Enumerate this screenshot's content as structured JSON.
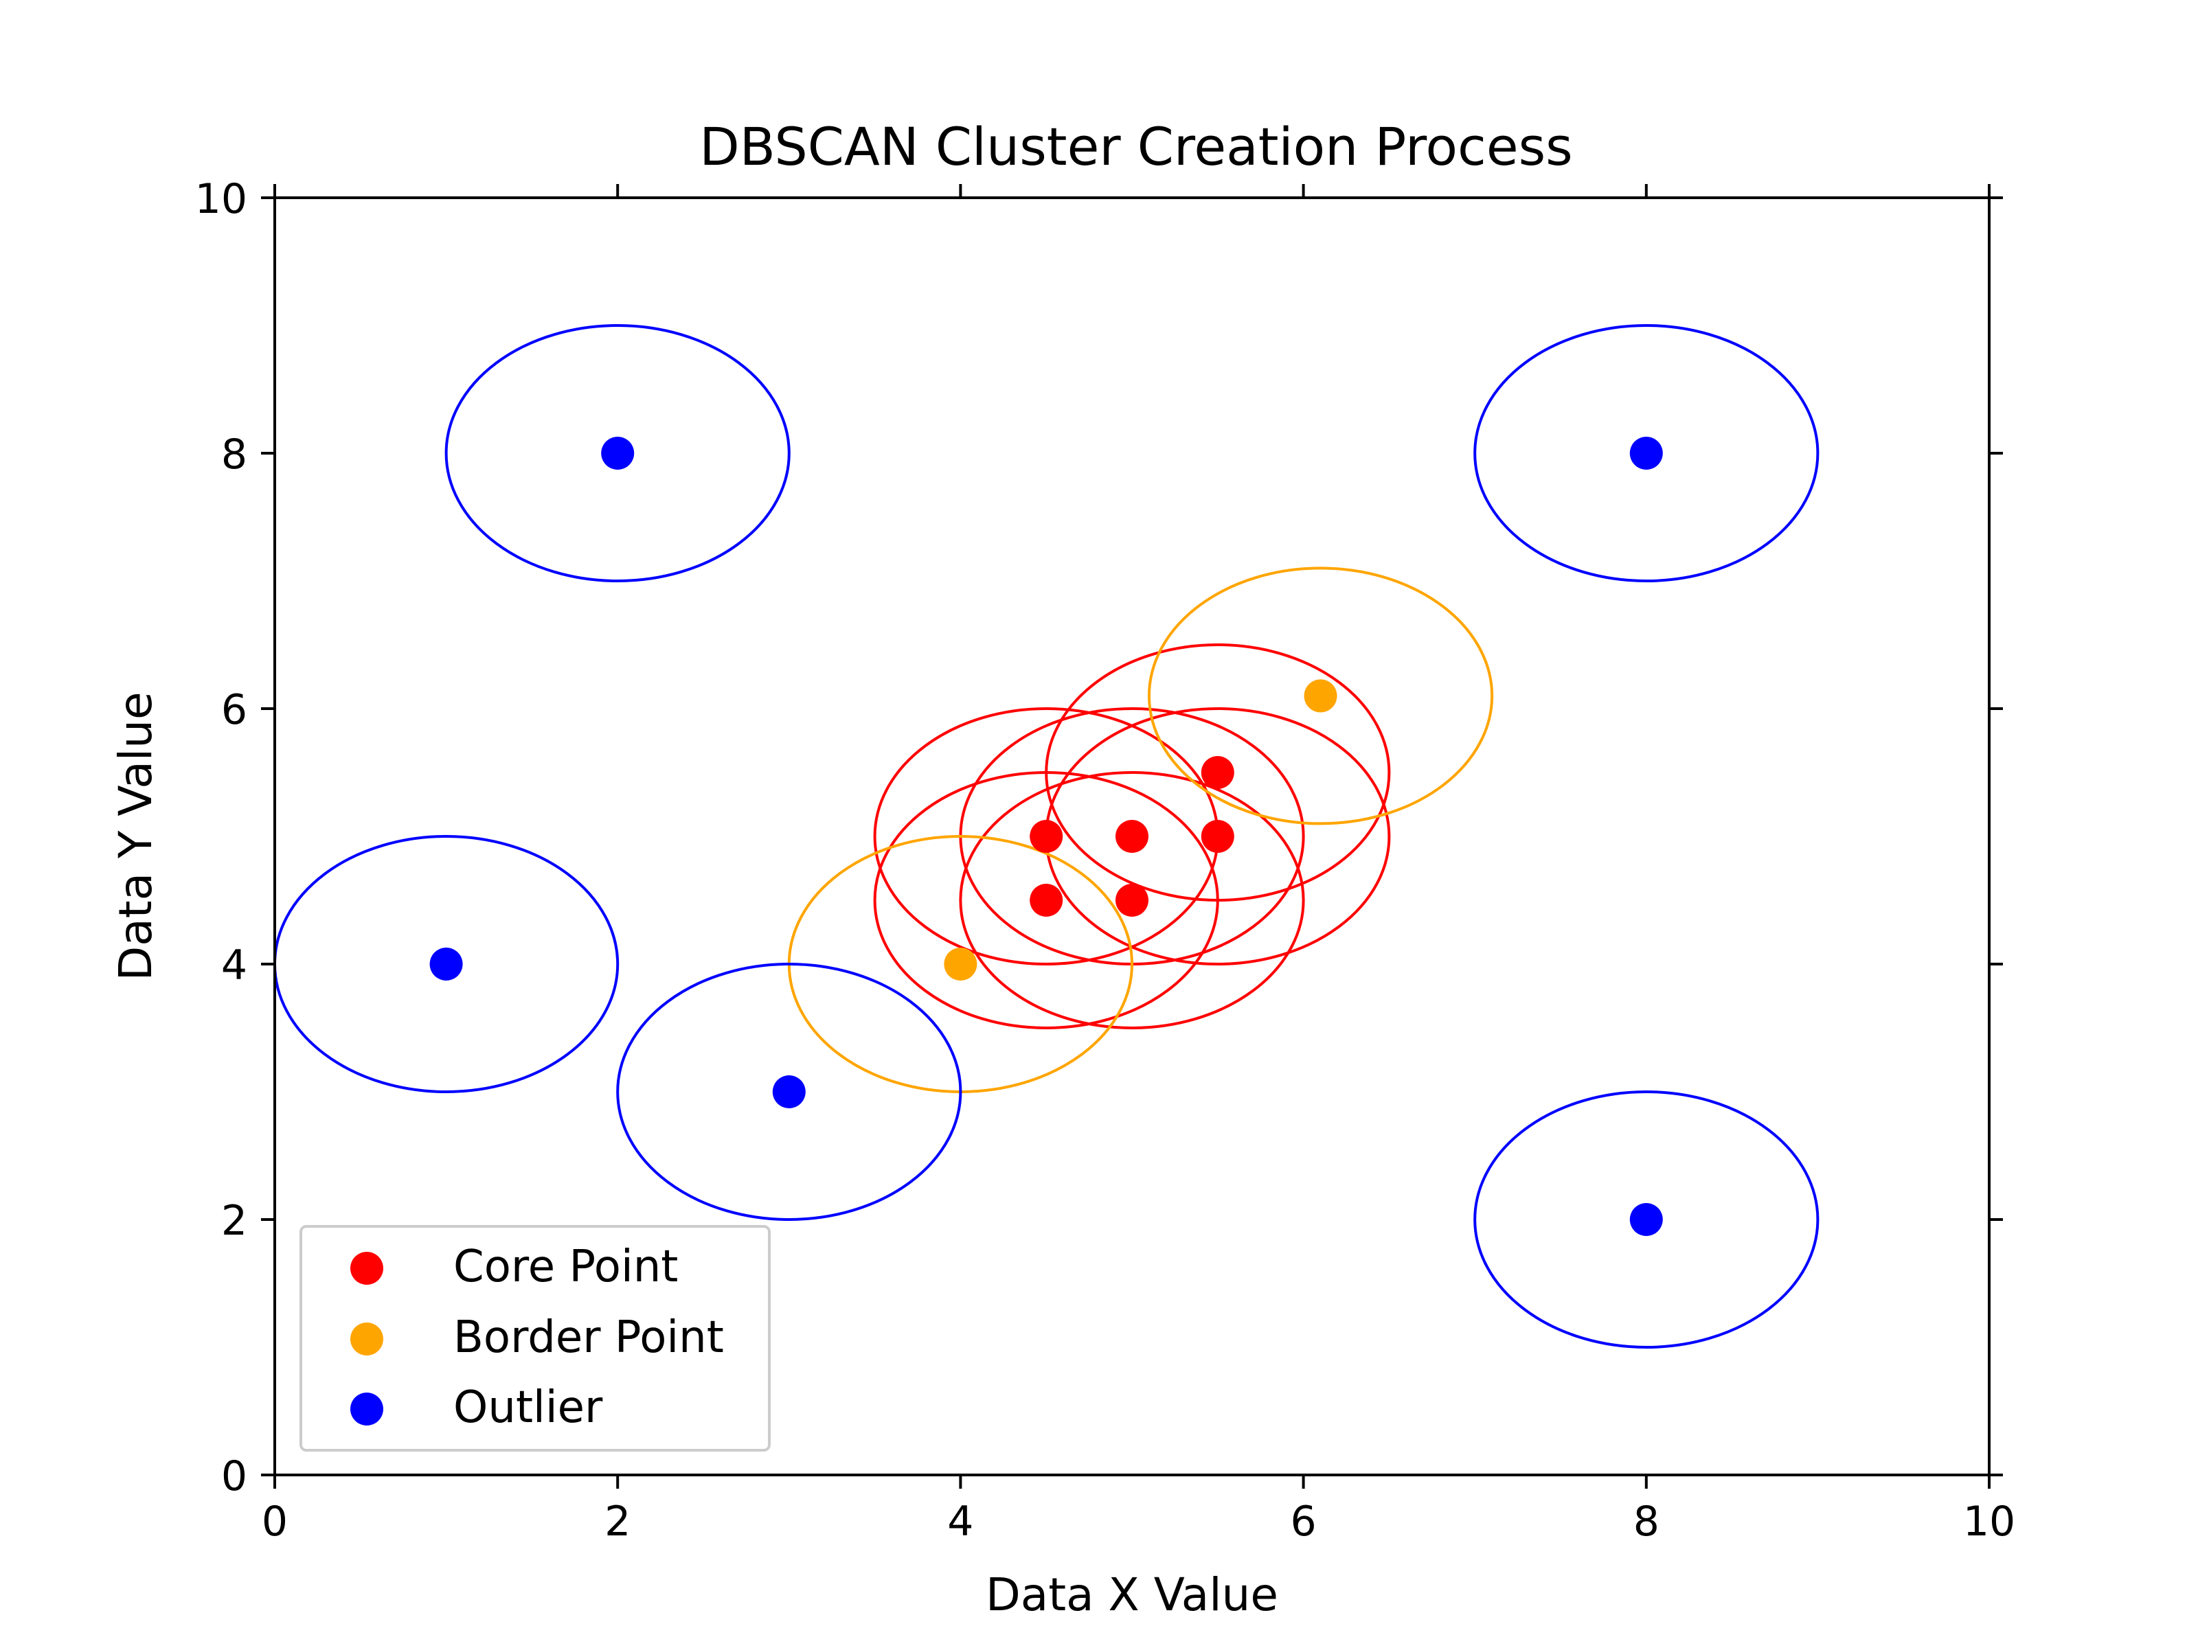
{
  "chart_data": {
    "type": "scatter",
    "title": "DBSCAN Cluster Creation Process",
    "xlabel": "Data X Value",
    "ylabel": "Data Y Value",
    "xlim": [
      0,
      10
    ],
    "ylim": [
      0,
      10
    ],
    "x_ticks": [
      "0",
      "2",
      "4",
      "6",
      "8",
      "10"
    ],
    "y_ticks": [
      "0",
      "2",
      "4",
      "6",
      "8",
      "10"
    ],
    "grid": false,
    "legend_position": "lower-left",
    "eps_circle_radius": 1,
    "series": [
      {
        "name": "Core Point",
        "color": "#ff0000",
        "points": [
          {
            "x": 4.5,
            "y": 5.0
          },
          {
            "x": 5.0,
            "y": 5.0
          },
          {
            "x": 5.5,
            "y": 5.5
          },
          {
            "x": 4.5,
            "y": 4.5
          },
          {
            "x": 5.0,
            "y": 4.5
          },
          {
            "x": 5.5,
            "y": 5.0
          }
        ]
      },
      {
        "name": "Border Point",
        "color": "#ffa500",
        "points": [
          {
            "x": 4.0,
            "y": 4.0
          },
          {
            "x": 6.1,
            "y": 6.1
          }
        ]
      },
      {
        "name": "Outlier",
        "color": "#0000ff",
        "points": [
          {
            "x": 2.0,
            "y": 8.0
          },
          {
            "x": 8.0,
            "y": 8.0
          },
          {
            "x": 1.0,
            "y": 4.0
          },
          {
            "x": 3.0,
            "y": 3.0
          },
          {
            "x": 8.0,
            "y": 2.0
          }
        ]
      }
    ]
  }
}
